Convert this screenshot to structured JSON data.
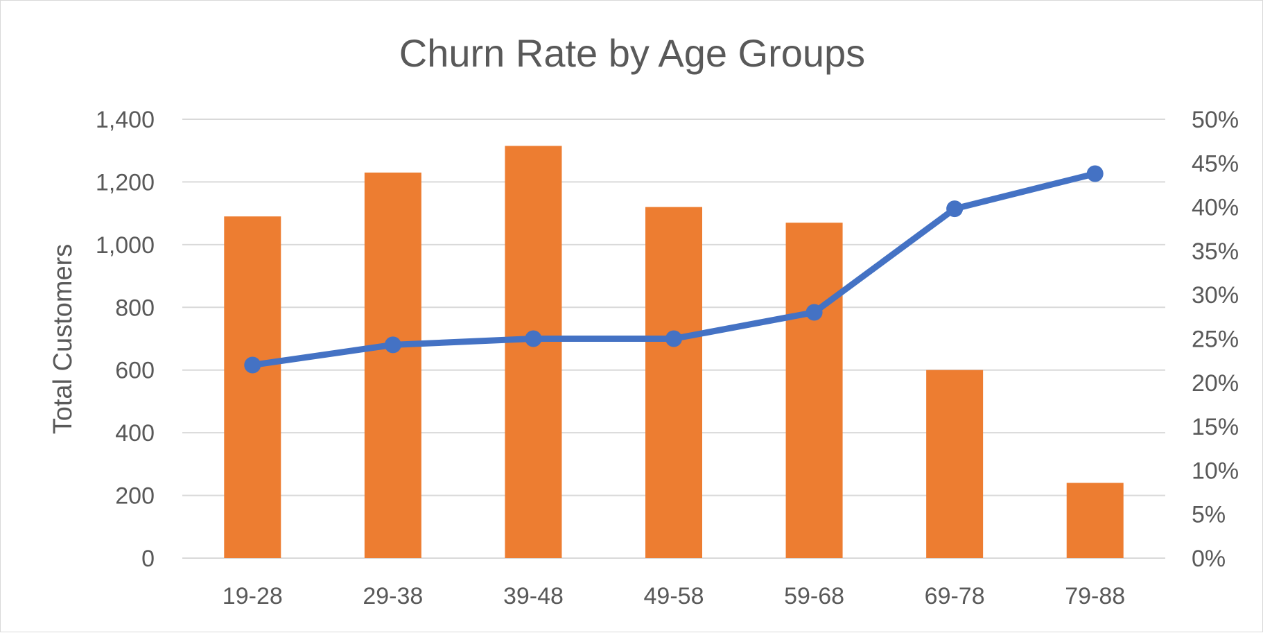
{
  "chart_data": {
    "type": "bar",
    "title": "Churn Rate by Age Groups",
    "xlabel": "",
    "ylabel": "Total Customers",
    "y2label": "",
    "categories": [
      "19-28",
      "29-38",
      "39-48",
      "49-58",
      "59-68",
      "69-78",
      "79-88"
    ],
    "series": [
      {
        "type": "bar",
        "axis": "left",
        "values": [
          1090,
          1230,
          1315,
          1120,
          1070,
          600,
          240
        ],
        "color": "#ed7d31"
      },
      {
        "type": "line",
        "axis": "right",
        "values": [
          22,
          24.3,
          25,
          25,
          28,
          39.8,
          43.8
        ],
        "color": "#4472c4"
      }
    ],
    "ylim": [
      0,
      1400
    ],
    "y_ticks": [
      "0",
      "200",
      "400",
      "600",
      "800",
      "1,000",
      "1,200",
      "1,400"
    ],
    "y2lim": [
      0,
      50
    ],
    "y2_ticks": [
      "0%",
      "5%",
      "10%",
      "15%",
      "20%",
      "25%",
      "30%",
      "35%",
      "40%",
      "45%",
      "50%"
    ],
    "grid": true,
    "legend": "none"
  }
}
